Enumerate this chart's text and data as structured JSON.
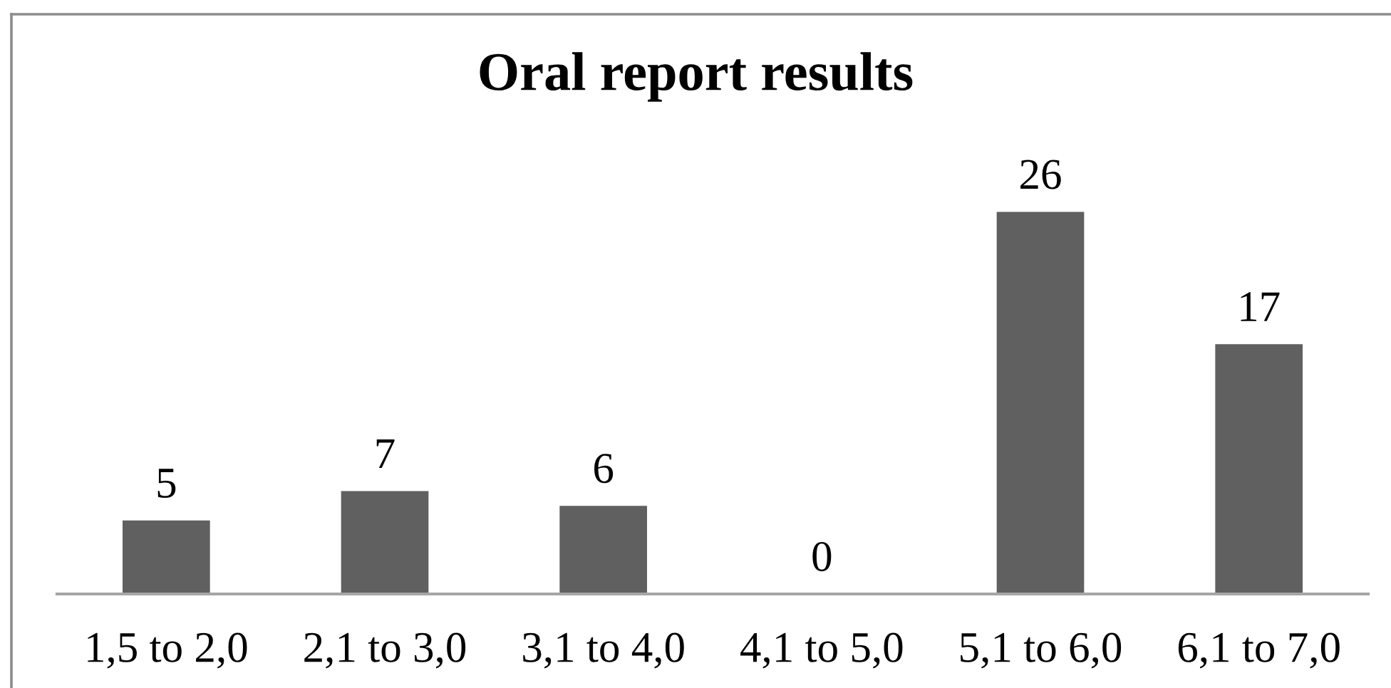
{
  "chart_data": {
    "type": "bar",
    "title": "Oral report results",
    "categories": [
      "1,5 to 2,0",
      "2,1 to 3,0",
      "3,1 to 4,0",
      "4,1 to 5,0",
      "5,1 to 6,0",
      "6,1 to 7,0"
    ],
    "values": [
      5,
      7,
      6,
      0,
      26,
      17
    ],
    "color": "#606060",
    "data_labels": true
  }
}
